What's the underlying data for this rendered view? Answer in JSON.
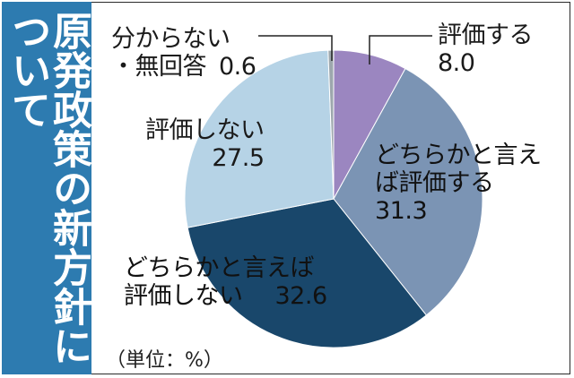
{
  "title": {
    "line1": "原発政策の新方針に",
    "line2": "ついて"
  },
  "unit_note": "（単位：%）",
  "chart_data": {
    "type": "pie",
    "title": "原発政策の新方針について",
    "unit": "%",
    "slices": [
      {
        "label": "評価する",
        "value": 8.0,
        "color": "#9b86c0"
      },
      {
        "label": "どちらかと言えば評価する",
        "value": 31.3,
        "color": "#7b94b4"
      },
      {
        "label": "どちらかと言えば評価しない",
        "value": 32.6,
        "color": "#19476b"
      },
      {
        "label": "評価しない",
        "value": 27.5,
        "color": "#b6d3e6"
      },
      {
        "label": "分からない・無回答",
        "value": 0.6,
        "color": "#9da7ad"
      }
    ]
  },
  "labels": {
    "eval": {
      "line1": "評価する",
      "line2": "8.0"
    },
    "rather_eval": {
      "line1": "どちらかと言え",
      "line2": "ば評価する",
      "line3": "31.3"
    },
    "rather_not": {
      "line1": "どちらかと言えば",
      "line2": "評価しない",
      "value": "32.6"
    },
    "not_eval": {
      "line1": "評価しない",
      "line2": "27.5"
    },
    "unknown": {
      "line1": "分からない",
      "line2": "・無回答",
      "value": "0.6"
    }
  }
}
